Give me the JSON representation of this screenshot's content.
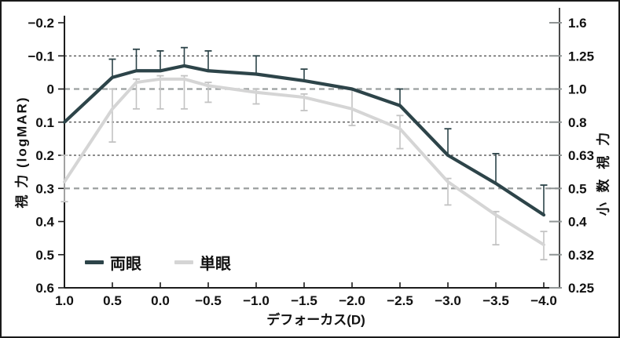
{
  "chart_data": {
    "type": "line",
    "title": "",
    "xlabel": "デフォーカス(D)",
    "ylabel_left": "視 力 (logMAR)",
    "ylabel_right": "小 数 視 力",
    "x_axis": {
      "tick_labels": [
        "1.0",
        "0.5",
        "0.0",
        "−0.5",
        "−1.0",
        "−1.5",
        "−2.0",
        "−2.5",
        "−3.0",
        "−3.5",
        "−4.0"
      ],
      "tick_values": [
        1.0,
        0.5,
        0.0,
        -0.5,
        -1.0,
        -1.5,
        -2.0,
        -2.5,
        -3.0,
        -3.5,
        -4.0
      ],
      "range_left_to_right": [
        1.0,
        -4.16
      ]
    },
    "y_axis_left": {
      "unit": "logMAR",
      "tick_labels": [
        "−0.2",
        "−0.1",
        "0",
        "0.1",
        "0.2",
        "0.3",
        "0.4",
        "0.5",
        "0.6"
      ],
      "tick_values": [
        -0.2,
        -0.1,
        0,
        0.1,
        0.2,
        0.3,
        0.4,
        0.5,
        0.6
      ],
      "range_top_to_bottom": [
        -0.2,
        0.6
      ]
    },
    "y_axis_right": {
      "unit": "decimal acuity",
      "tick_labels": [
        "1.6",
        "1.25",
        "1.0",
        "0.8",
        "0.63",
        "0.5",
        "0.4",
        "0.32",
        "0.25"
      ],
      "anchor_logmar": [
        -0.2,
        -0.1,
        0,
        0.1,
        0.2,
        0.3,
        0.4,
        0.5,
        0.6
      ]
    },
    "gridlines": [
      {
        "at": -0.1,
        "style": "fine"
      },
      {
        "at": 0.0,
        "style": "bold"
      },
      {
        "at": 0.1,
        "style": "fine"
      },
      {
        "at": 0.2,
        "style": "fine"
      },
      {
        "at": 0.3,
        "style": "bold"
      }
    ],
    "x": [
      1.0,
      0.5,
      0.25,
      0.0,
      -0.25,
      -0.5,
      -1.0,
      -1.5,
      -2.0,
      -2.5,
      -3.0,
      -3.5,
      -4.0
    ],
    "series": [
      {
        "name": "両眼",
        "color": "#2d4449",
        "values": [
          0.1,
          -0.035,
          -0.055,
          -0.055,
          -0.07,
          -0.055,
          -0.045,
          -0.025,
          0.0,
          0.05,
          0.2,
          0.285,
          0.38
        ],
        "err_up": [
          0,
          0.055,
          0.065,
          0.06,
          0.055,
          0.06,
          0.055,
          0.035,
          0,
          0.05,
          0.08,
          0.09,
          0.09
        ],
        "err_down": [
          0,
          0,
          0,
          0,
          0,
          0,
          0,
          0,
          0,
          0,
          0,
          0,
          0
        ]
      },
      {
        "name": "単眼",
        "color": "#d5d5d5",
        "err_color": "#c3c3c3",
        "values": [
          0.28,
          0.06,
          -0.02,
          -0.03,
          -0.03,
          -0.01,
          0.01,
          0.025,
          0.06,
          0.12,
          0.28,
          0.38,
          0.47
        ],
        "err_up": [
          0.08,
          0.06,
          0.01,
          0.01,
          0.01,
          0.01,
          0.01,
          0.01,
          0.06,
          0.04,
          0.01,
          0.01,
          0.04
        ],
        "err_down": [
          0.06,
          0.1,
          0.08,
          0.09,
          0.09,
          0.05,
          0.035,
          0.04,
          0.05,
          0.06,
          0.07,
          0.09,
          0.045
        ]
      }
    ]
  },
  "legend": {
    "items": [
      {
        "label": "両眼",
        "color": "#2d4449"
      },
      {
        "label": "単眼",
        "color": "#d5d5d5"
      }
    ]
  },
  "style": {
    "grid_fine_color": "#1a1a1a",
    "grid_bold_color": "#9b9f9f",
    "axis_color": "#1c1c1c",
    "right_tick_color": "#8f9494",
    "text_color": "#111111",
    "background": "#ffffff"
  }
}
